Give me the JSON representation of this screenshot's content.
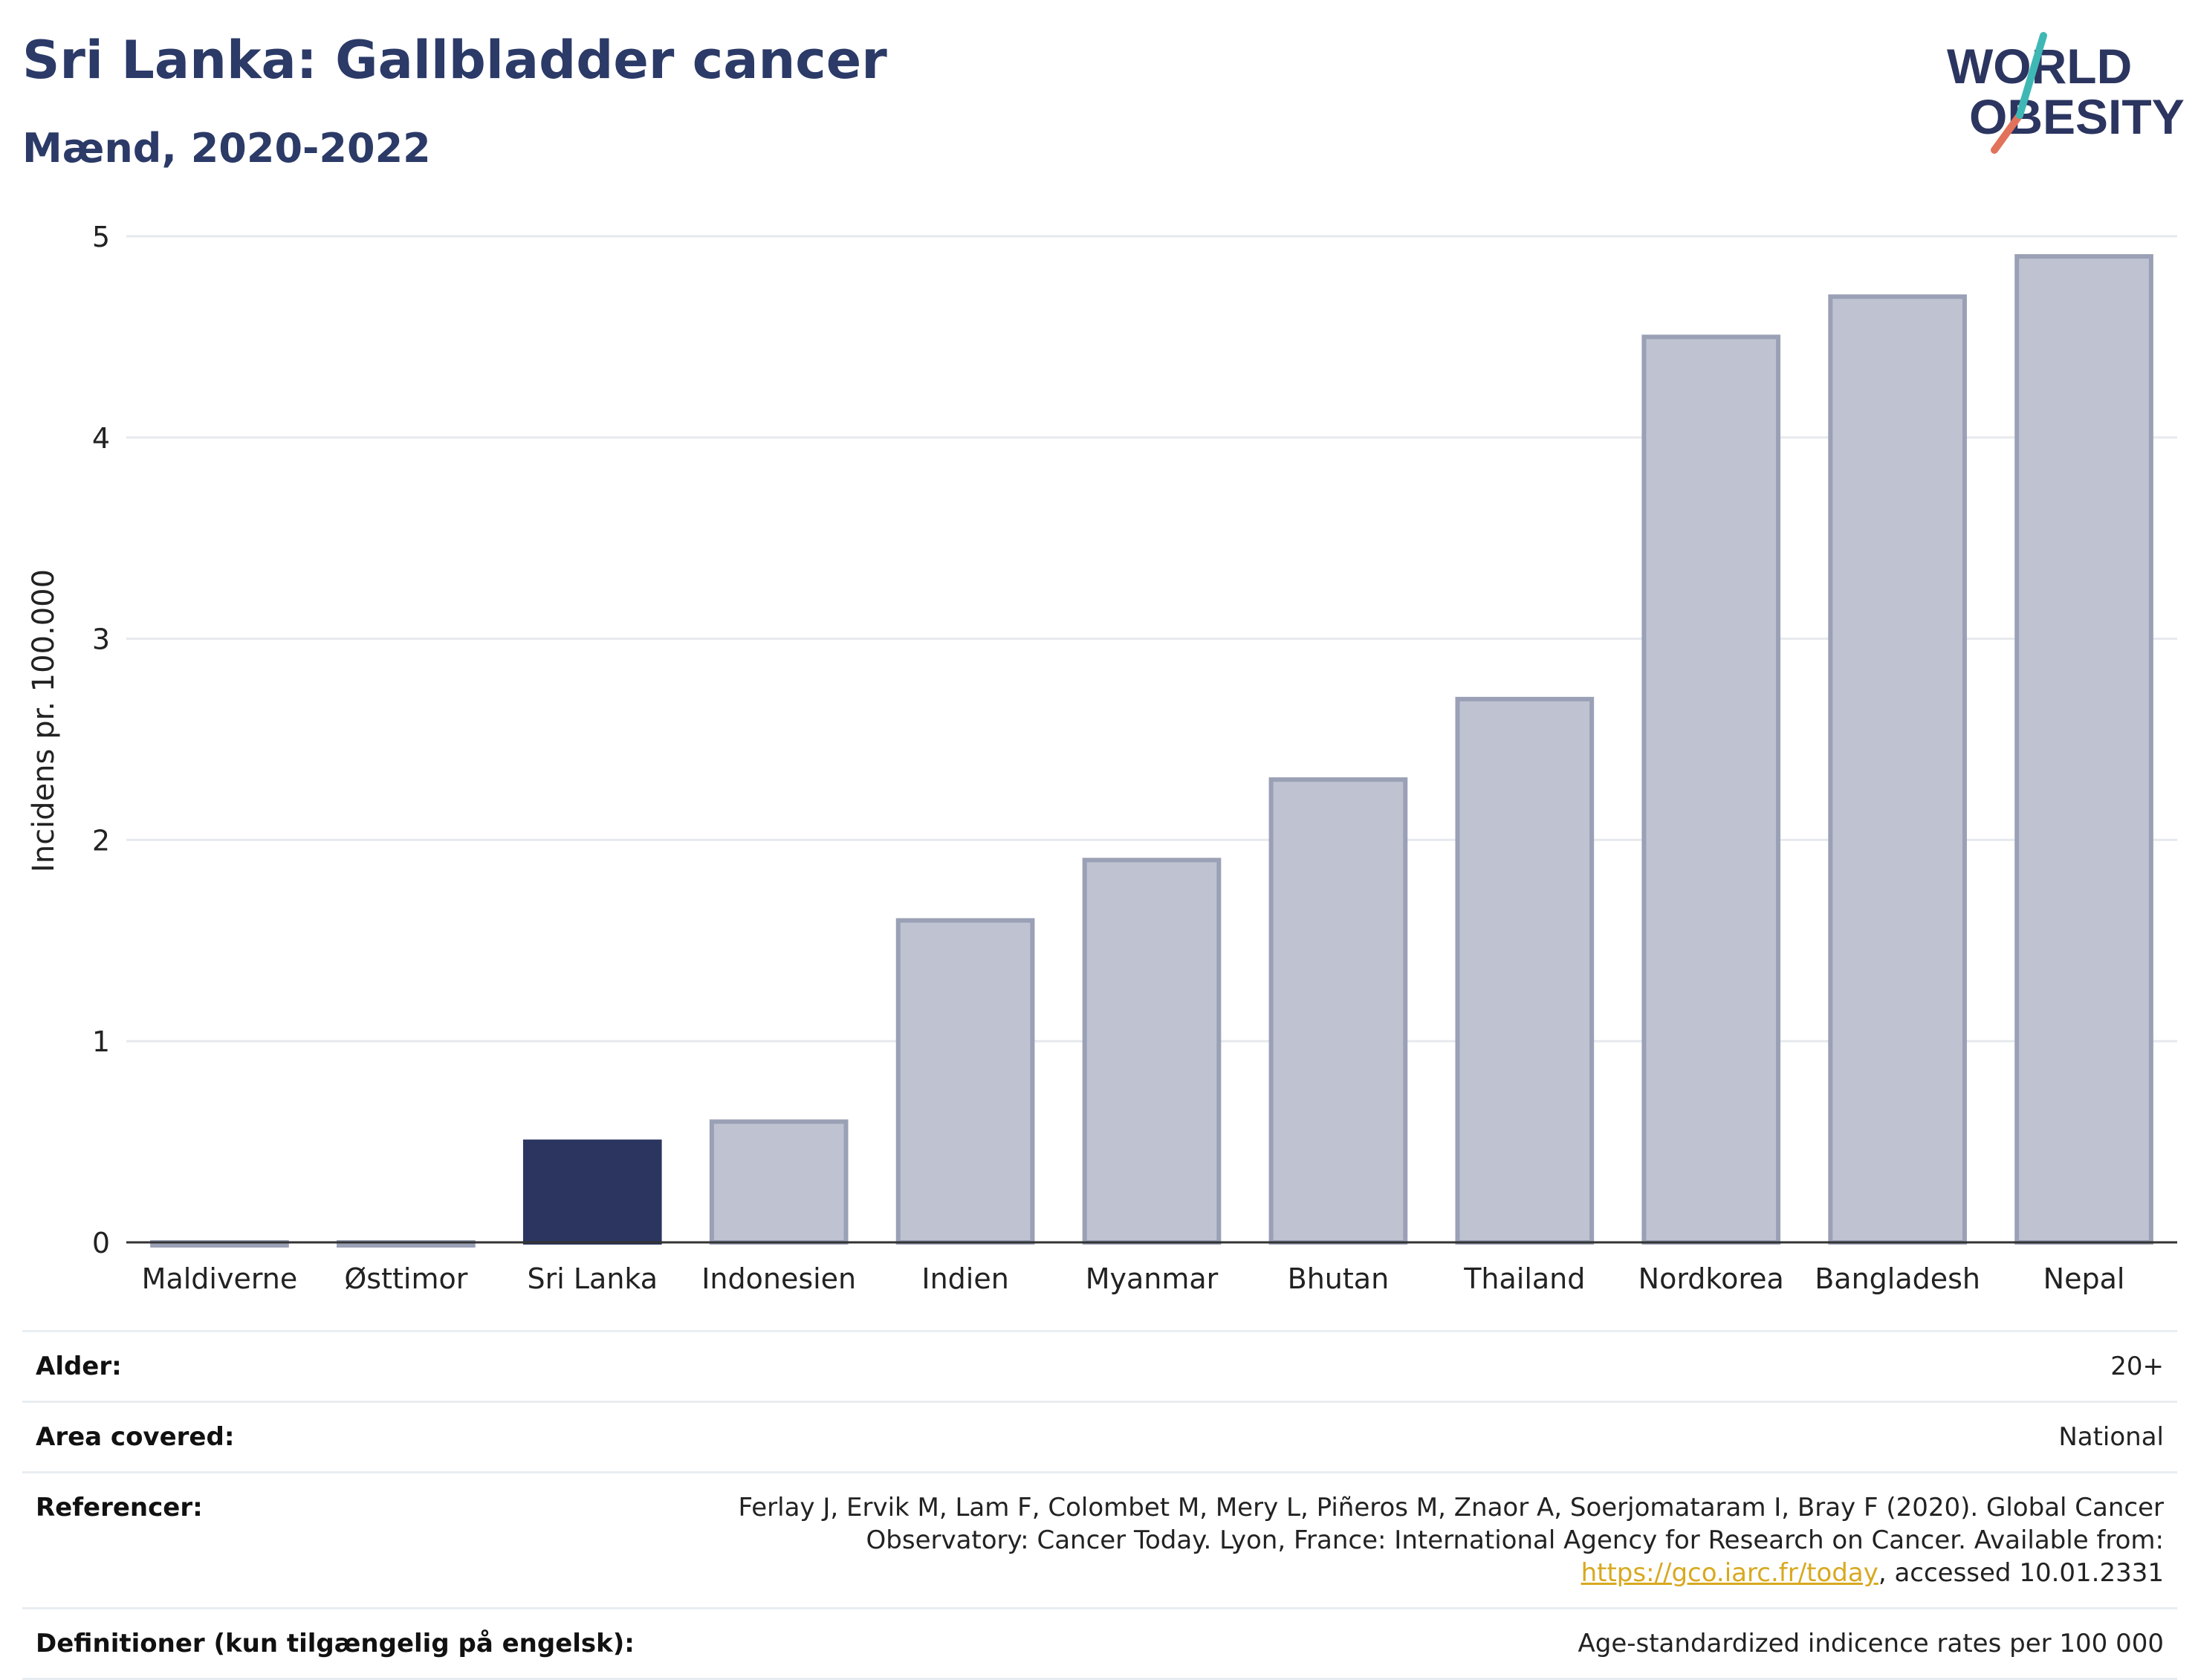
{
  "header": {
    "title": "Sri Lanka: Gallbladder cancer",
    "subtitle": "Mænd, 2020-2022"
  },
  "logo": {
    "line1": "WORLD",
    "line2": "OBESITY"
  },
  "colors": {
    "highlight": "#2b3560",
    "bar": "#bfc3d1",
    "bar_edge": "#9aa0b5",
    "title": "#2b3a67",
    "link": "#d8a920"
  },
  "chart_data": {
    "type": "bar",
    "title": "Sri Lanka: Gallbladder cancer",
    "subtitle": "Mænd, 2020-2022",
    "ylabel": "Incidens pr. 100.000",
    "xlabel": "",
    "categories": [
      "Maldiverne",
      "Østtimor",
      "Sri Lanka",
      "Indonesien",
      "Indien",
      "Myanmar",
      "Bhutan",
      "Thailand",
      "Nordkorea",
      "Bangladesh",
      "Nepal"
    ],
    "values": [
      0,
      0,
      0.5,
      0.6,
      1.6,
      1.9,
      2.3,
      2.7,
      4.5,
      4.7,
      4.9
    ],
    "highlight": "Sri Lanka",
    "ylim": [
      0,
      5
    ],
    "yticks": [
      0,
      1,
      2,
      3,
      4,
      5
    ],
    "grid": true
  },
  "meta": {
    "age_label": "Alder:",
    "age_value": "20+",
    "area_label": "Area covered:",
    "area_value": "National",
    "ref_label": "Referencer:",
    "ref_text_1": "Ferlay J, Ervik M, Lam F, Colombet M, Mery L, Piñeros M, Znaor A, Soerjomataram I, Bray F (2020). Global Cancer Observatory: Cancer Today. Lyon, France: International Agency for Research on Cancer. Available from: ",
    "ref_link": "https://gco.iarc.fr/today",
    "ref_text_2": ", accessed 10.01.2331",
    "def_label": "Definitioner (kun tilgængelig på engelsk):",
    "def_value": "Age-standardized indicence rates per 100 000"
  }
}
